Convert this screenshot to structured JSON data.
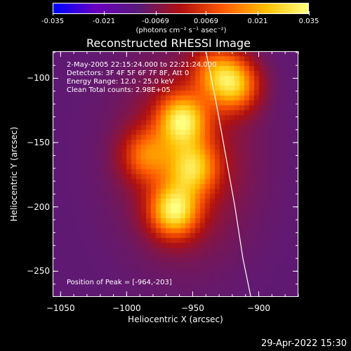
{
  "colorbar": {
    "ticks": [
      "-0.035",
      "-0.021",
      "-0.0069",
      "0.0069",
      "0.021",
      "0.035"
    ],
    "tick_values": [
      -0.035,
      -0.021,
      -0.0069,
      0.0069,
      0.021,
      0.035
    ],
    "units": "(photons cm⁻² s⁻¹ asec⁻²)",
    "colors": [
      "#0000ff",
      "#6a00c0",
      "#5a1a7a",
      "#b01010",
      "#ff5a00",
      "#ffc000",
      "#ffff80"
    ]
  },
  "chart_data": {
    "type": "heatmap",
    "title": "Reconstructed RHESSI Image",
    "xlabel": "Heliocentric X (arcsec)",
    "ylabel": "Heliocentric Y (arcsec)",
    "xlim": [
      -1056,
      -870
    ],
    "ylim": [
      -270,
      -79
    ],
    "xticks": [
      -1050,
      -1000,
      -950,
      -900
    ],
    "yticks": [
      -100,
      -150,
      -200,
      -250
    ],
    "info": {
      "line1": "2-May-2005 22:15:24.000 to 22:21:24.000",
      "line2": "Detectors: 3F 4F 5F 6F 7F 8F, Att 0",
      "line3": "Energy Range: 12.0 - 25.0 keV",
      "line4": "Clean    Total counts: 2.98E+05"
    },
    "peak_label": "Position of Peak = [-964,-203]",
    "peak": [
      -964,
      -203
    ],
    "sources": [
      {
        "x": -964,
        "y": -203,
        "peak": 0.035
      },
      {
        "x": -958,
        "y": -133,
        "peak": 0.033
      },
      {
        "x": -950,
        "y": -170,
        "peak": 0.026
      },
      {
        "x": -918,
        "y": -105,
        "peak": 0.028
      },
      {
        "x": -933,
        "y": -95,
        "peak": 0.018
      },
      {
        "x": -985,
        "y": -160,
        "peak": 0.018
      }
    ],
    "limb_points": [
      [
        -940,
        -79
      ],
      [
        -932,
        -120
      ],
      [
        -925,
        -160
      ],
      [
        -918,
        -200
      ],
      [
        -912,
        -240
      ],
      [
        -906,
        -270
      ]
    ],
    "background": -0.011
  },
  "footer": {
    "date": "29-Apr-2022 15:30"
  }
}
